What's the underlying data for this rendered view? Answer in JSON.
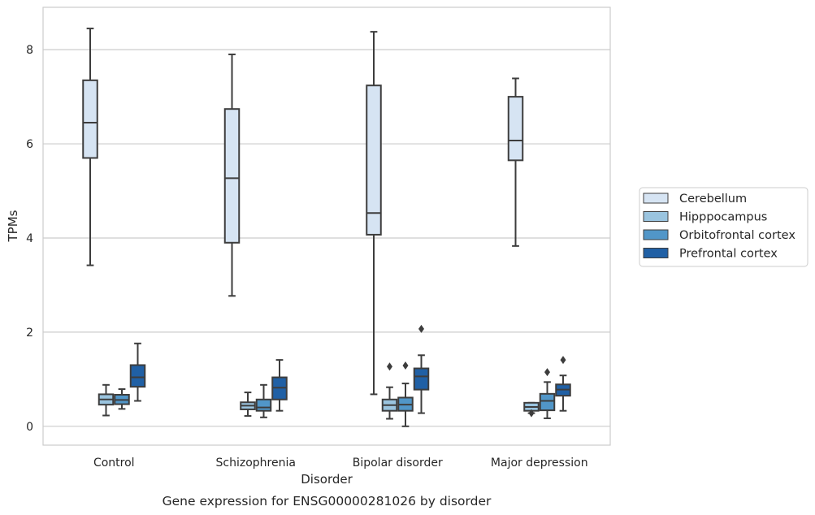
{
  "chart_data": {
    "type": "box",
    "caption": "Gene expression for ENSG00000281026 by disorder",
    "xlabel": "Disorder",
    "ylabel": "TPMs",
    "ylim": [
      -0.4,
      8.9
    ],
    "yticks": [
      0,
      2,
      4,
      6,
      8
    ],
    "grid": "horizontal",
    "legend_position": "right",
    "categories": [
      "Control",
      "Schizophrenia",
      "Bipolar disorder",
      "Major depression"
    ],
    "series": [
      {
        "name": "Cerebellum",
        "color": "#d6e4f3",
        "boxes": [
          {
            "whislo": 3.42,
            "q1": 5.7,
            "med": 6.45,
            "q3": 7.35,
            "whishi": 8.45,
            "fliers": []
          },
          {
            "whislo": 2.77,
            "q1": 3.9,
            "med": 5.27,
            "q3": 6.74,
            "whishi": 7.9,
            "fliers": []
          },
          {
            "whislo": 0.68,
            "q1": 4.07,
            "med": 4.53,
            "q3": 7.24,
            "whishi": 8.38,
            "fliers": []
          },
          {
            "whislo": 3.83,
            "q1": 5.65,
            "med": 6.07,
            "q3": 7.0,
            "whishi": 7.39,
            "fliers": []
          }
        ]
      },
      {
        "name": "Hipppocampus",
        "color": "#9ac4df",
        "boxes": [
          {
            "whislo": 0.23,
            "q1": 0.46,
            "med": 0.57,
            "q3": 0.68,
            "whishi": 0.88,
            "fliers": []
          },
          {
            "whislo": 0.22,
            "q1": 0.36,
            "med": 0.44,
            "q3": 0.51,
            "whishi": 0.72,
            "fliers": []
          },
          {
            "whislo": 0.16,
            "q1": 0.33,
            "med": 0.45,
            "q3": 0.57,
            "whishi": 0.83,
            "fliers": [
              1.27
            ]
          },
          {
            "whislo": 0.28,
            "q1": 0.33,
            "med": 0.41,
            "q3": 0.5,
            "whishi": 0.5,
            "fliers": [
              0.28
            ]
          }
        ]
      },
      {
        "name": "Orbitofrontal cortex",
        "color": "#5196c8",
        "boxes": [
          {
            "whislo": 0.37,
            "q1": 0.47,
            "med": 0.56,
            "q3": 0.67,
            "whishi": 0.79,
            "fliers": []
          },
          {
            "whislo": 0.19,
            "q1": 0.33,
            "med": 0.4,
            "q3": 0.57,
            "whishi": 0.88,
            "fliers": []
          },
          {
            "whislo": 0.0,
            "q1": 0.33,
            "med": 0.46,
            "q3": 0.61,
            "whishi": 0.91,
            "fliers": [
              1.29
            ]
          },
          {
            "whislo": 0.17,
            "q1": 0.34,
            "med": 0.54,
            "q3": 0.69,
            "whishi": 0.94,
            "fliers": [
              1.15
            ]
          }
        ]
      },
      {
        "name": "Prefrontal cortex",
        "color": "#2060a5",
        "boxes": [
          {
            "whislo": 0.54,
            "q1": 0.84,
            "med": 1.04,
            "q3": 1.3,
            "whishi": 1.76,
            "fliers": []
          },
          {
            "whislo": 0.33,
            "q1": 0.57,
            "med": 0.82,
            "q3": 1.04,
            "whishi": 1.41,
            "fliers": []
          },
          {
            "whislo": 0.28,
            "q1": 0.78,
            "med": 1.06,
            "q3": 1.23,
            "whishi": 1.51,
            "fliers": [
              2.07
            ]
          },
          {
            "whislo": 0.33,
            "q1": 0.65,
            "med": 0.78,
            "q3": 0.89,
            "whishi": 1.08,
            "fliers": [
              1.41
            ]
          }
        ]
      }
    ]
  }
}
